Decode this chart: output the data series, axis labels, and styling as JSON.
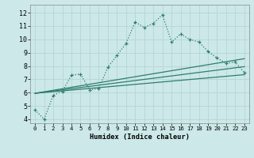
{
  "xlabel": "Humidex (Indice chaleur)",
  "background_color": "#cce8e8",
  "grid_color": "#b8d8d8",
  "line_color": "#2e7d6e",
  "x_ticks": [
    0,
    1,
    2,
    3,
    4,
    5,
    6,
    7,
    8,
    9,
    10,
    11,
    12,
    13,
    14,
    15,
    16,
    17,
    18,
    19,
    20,
    21,
    22,
    23
  ],
  "ylim": [
    3.7,
    12.6
  ],
  "xlim": [
    -0.5,
    23.5
  ],
  "yticks": [
    4,
    5,
    6,
    7,
    8,
    9,
    10,
    11,
    12
  ],
  "series1_x": [
    0,
    1,
    2,
    3,
    4,
    5,
    6,
    7,
    8,
    9,
    10,
    11,
    12,
    13,
    14,
    15,
    16,
    17,
    18,
    19,
    20,
    21,
    22,
    23
  ],
  "series1_y": [
    4.7,
    4.0,
    5.8,
    6.1,
    7.3,
    7.4,
    6.2,
    6.3,
    7.9,
    8.8,
    9.7,
    11.3,
    10.9,
    11.2,
    11.85,
    9.8,
    10.4,
    10.0,
    9.8,
    9.1,
    8.6,
    8.2,
    8.3,
    7.5
  ],
  "series2_x": [
    0,
    23
  ],
  "series2_y": [
    5.95,
    8.55
  ],
  "series3_x": [
    0,
    23
  ],
  "series3_y": [
    5.95,
    7.95
  ],
  "series4_x": [
    0,
    23
  ],
  "series4_y": [
    5.95,
    7.35
  ]
}
